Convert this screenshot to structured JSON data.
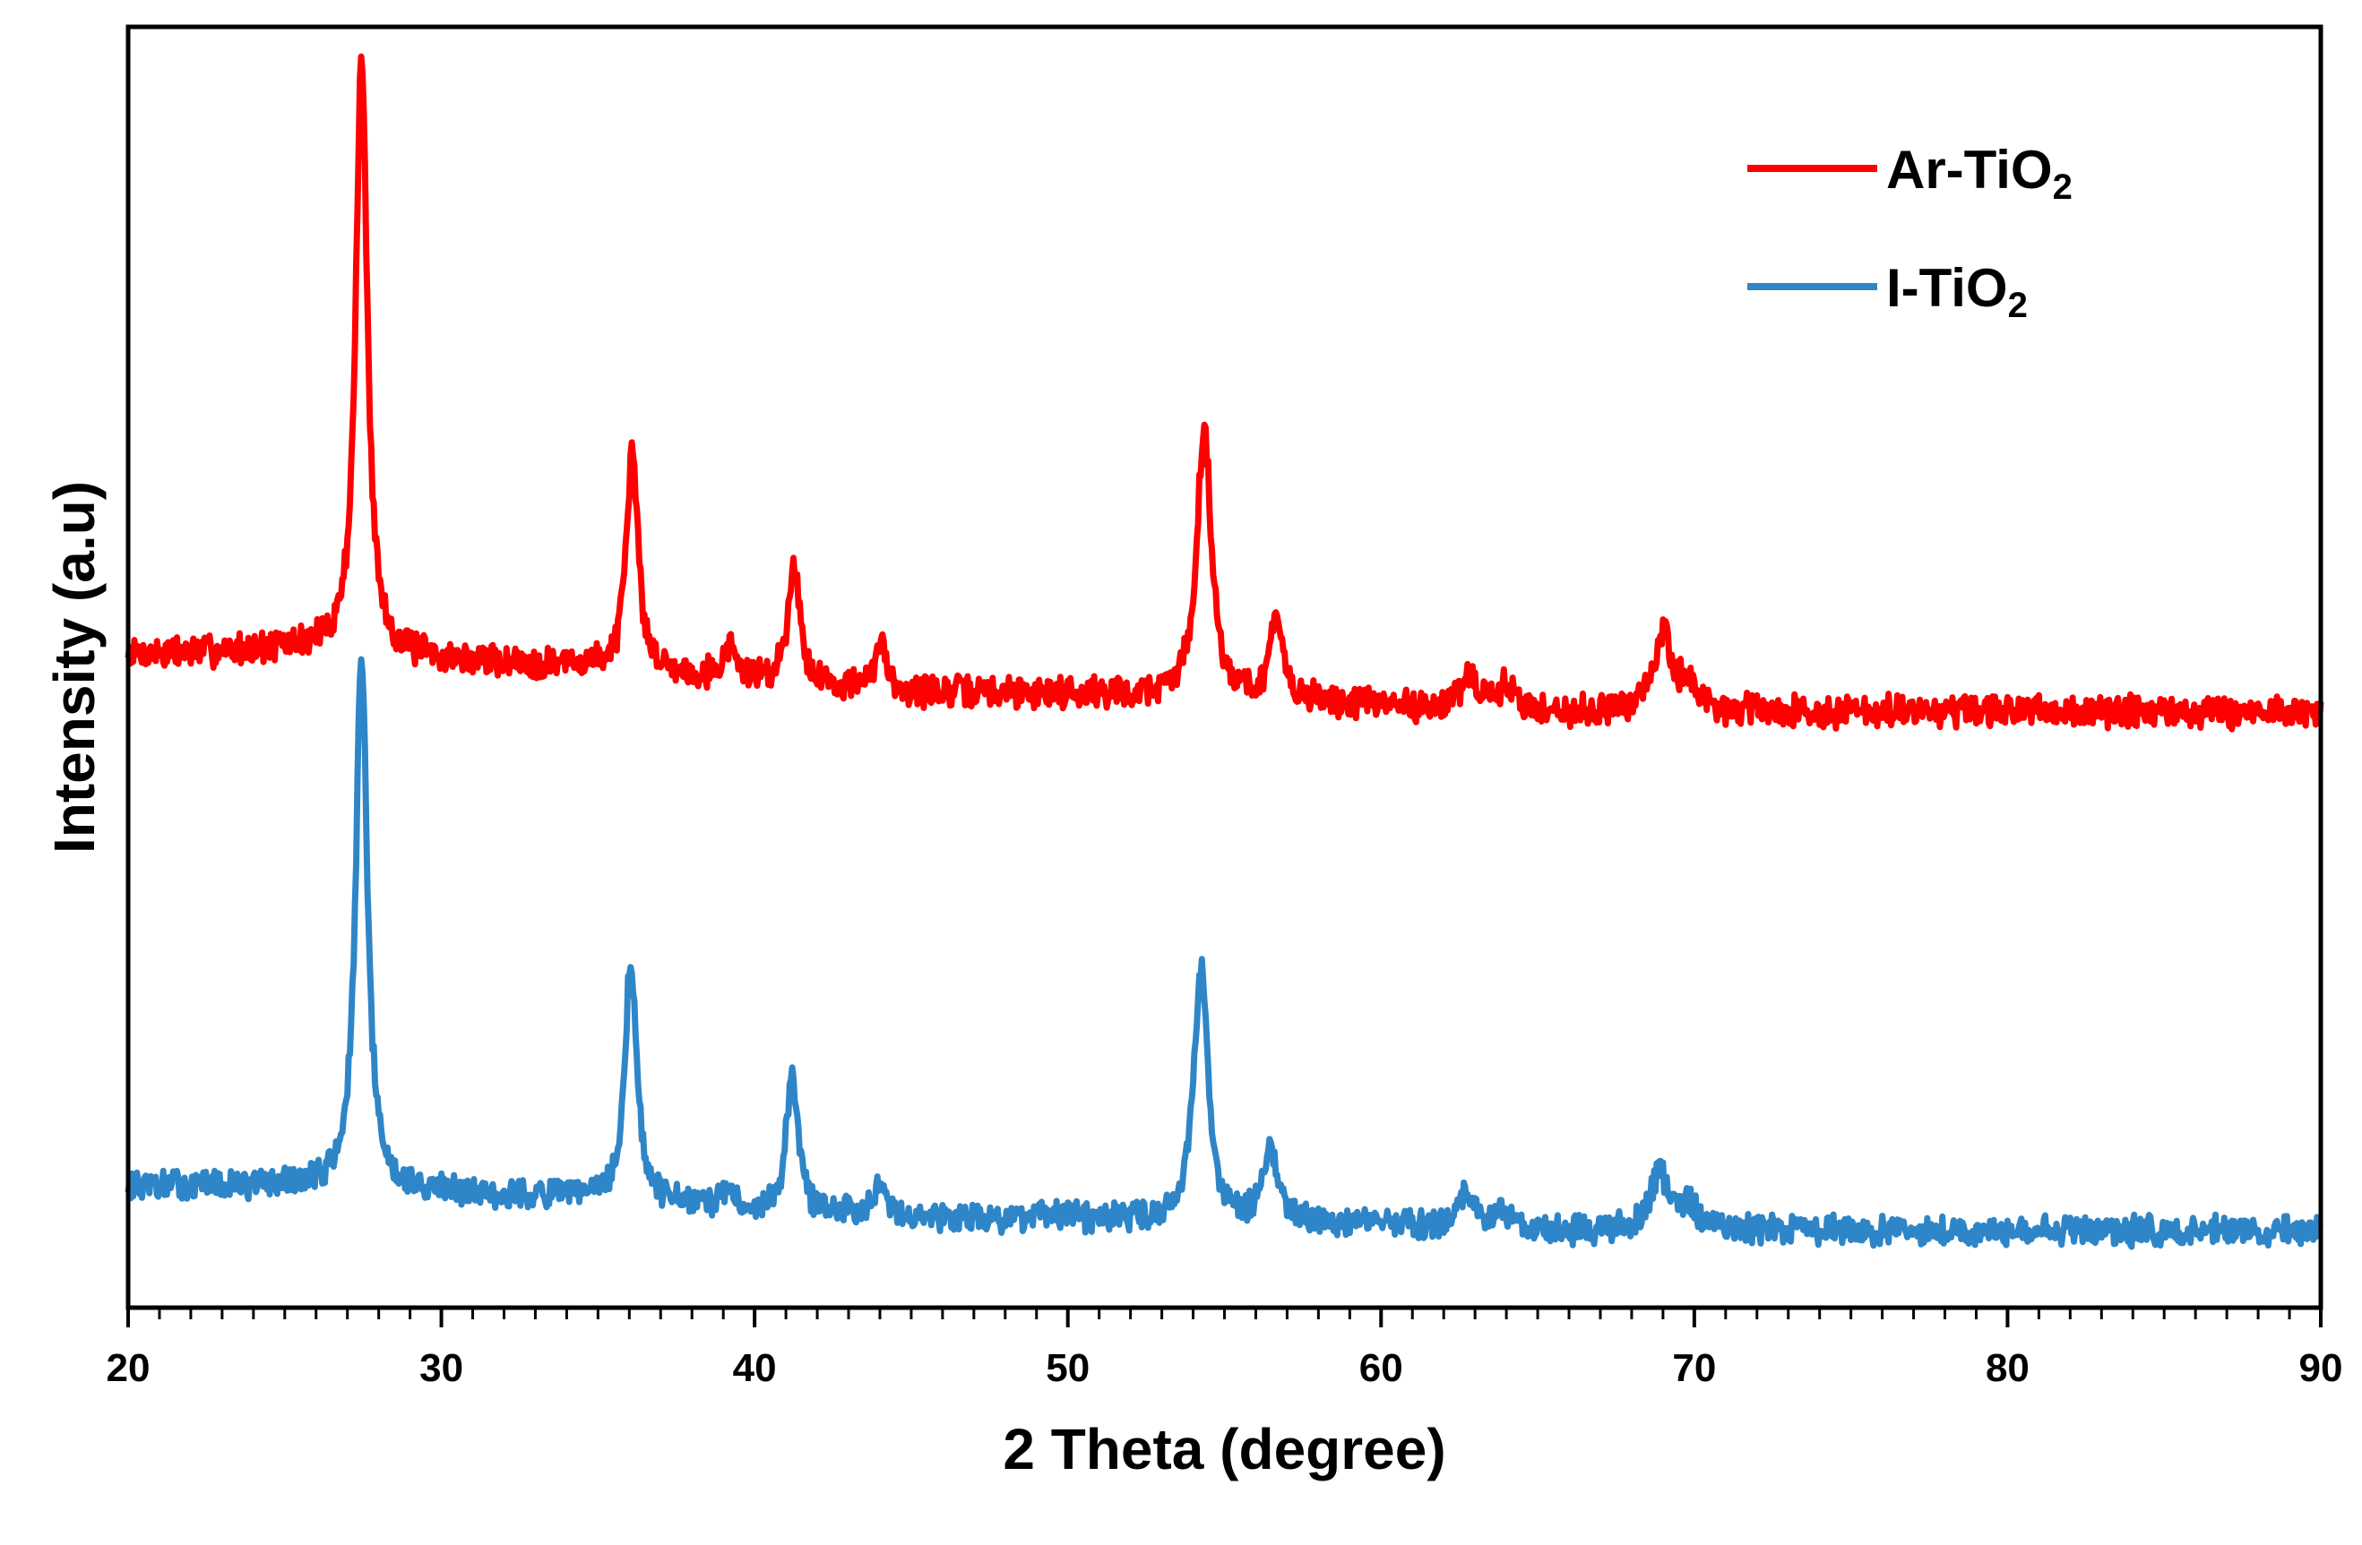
{
  "chart_data": {
    "type": "line",
    "title": "",
    "xlabel": "2 Theta (degree)",
    "ylabel": "Intensity (a.u)",
    "xlim": [
      20,
      90
    ],
    "ylim": [
      0,
      100
    ],
    "x_ticks": [
      20,
      30,
      40,
      50,
      60,
      70,
      80,
      90
    ],
    "x_tick_labels": [
      "20",
      "30",
      "40",
      "50",
      "60",
      "70",
      "80",
      "90"
    ],
    "minor_tick_step": 1,
    "y_ticks_shown": false,
    "grid": false,
    "legend_position": "top-right",
    "series": [
      {
        "name": "Ar-TiO2",
        "label_main": "Ar-TiO",
        "label_sub": "2",
        "color": "#ff0000",
        "baseline": [
          [
            20,
            51
          ],
          [
            26,
            51.5
          ],
          [
            30,
            50.5
          ],
          [
            35,
            50
          ],
          [
            40,
            49
          ],
          [
            45,
            48
          ],
          [
            50,
            48
          ],
          [
            55,
            47.5
          ],
          [
            60,
            47
          ],
          [
            65,
            46.5
          ],
          [
            70,
            46.5
          ],
          [
            75,
            46.5
          ],
          [
            80,
            46.5
          ],
          [
            85,
            46.5
          ],
          [
            90,
            46.5
          ]
        ],
        "peaks": [
          {
            "pos": 27.45,
            "height": 46.5,
            "width": 0.22
          },
          {
            "pos": 36.1,
            "height": 17.0,
            "width": 0.22
          },
          {
            "pos": 39.2,
            "height": 2.5,
            "width": 0.2
          },
          {
            "pos": 41.25,
            "height": 9.5,
            "width": 0.22
          },
          {
            "pos": 44.05,
            "height": 3.5,
            "width": 0.22
          },
          {
            "pos": 54.35,
            "height": 21.0,
            "width": 0.28
          },
          {
            "pos": 56.65,
            "height": 6.0,
            "width": 0.25
          },
          {
            "pos": 62.8,
            "height": 2.5,
            "width": 0.3
          },
          {
            "pos": 64.0,
            "height": 2.0,
            "width": 0.3
          },
          {
            "pos": 69.0,
            "height": 6.0,
            "width": 0.35
          },
          {
            "pos": 69.8,
            "height": 2.0,
            "width": 0.3
          }
        ],
        "noise_amplitude": 1.1,
        "seed": 7
      },
      {
        "name": "I-TiO2",
        "label_main": "I-TiO",
        "label_sub": "2",
        "color": "#2e86c8",
        "baseline": [
          [
            20,
            9.5
          ],
          [
            26,
            9.5
          ],
          [
            30,
            9.0
          ],
          [
            35,
            8.5
          ],
          [
            40,
            7.5
          ],
          [
            45,
            7.0
          ],
          [
            50,
            7.0
          ],
          [
            55,
            6.5
          ],
          [
            60,
            6.5
          ],
          [
            65,
            6.0
          ],
          [
            70,
            6.0
          ],
          [
            75,
            6.0
          ],
          [
            80,
            6.0
          ],
          [
            85,
            6.0
          ],
          [
            90,
            6.0
          ]
        ],
        "peaks": [
          {
            "pos": 27.45,
            "height": 41.5,
            "width": 0.22
          },
          {
            "pos": 36.05,
            "height": 19.0,
            "width": 0.22
          },
          {
            "pos": 39.2,
            "height": 1.5,
            "width": 0.2
          },
          {
            "pos": 41.2,
            "height": 11.0,
            "width": 0.22
          },
          {
            "pos": 44.0,
            "height": 3.0,
            "width": 0.25
          },
          {
            "pos": 54.25,
            "height": 20.0,
            "width": 0.28
          },
          {
            "pos": 56.45,
            "height": 6.0,
            "width": 0.25
          },
          {
            "pos": 62.7,
            "height": 2.5,
            "width": 0.3
          },
          {
            "pos": 63.9,
            "height": 1.5,
            "width": 0.3
          },
          {
            "pos": 68.9,
            "height": 4.5,
            "width": 0.35
          },
          {
            "pos": 69.8,
            "height": 2.0,
            "width": 0.3
          }
        ],
        "noise_amplitude": 1.0,
        "seed": 13
      }
    ]
  }
}
